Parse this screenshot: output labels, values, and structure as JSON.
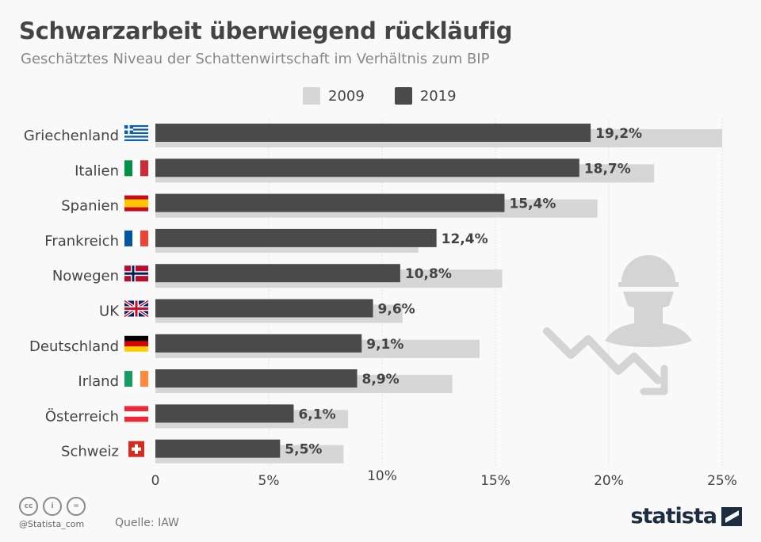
{
  "title": "Schwarzarbeit überwiegend rückläufig",
  "subtitle": "Geschätztes Niveau der Schattenwirtschaft im Verhältnis zum BIP",
  "footer": {
    "handle": "@Statista_com",
    "source": "Quelle: IAW",
    "logo": "statista",
    "cc_icons": [
      "cc",
      "by",
      "nd"
    ]
  },
  "colors": {
    "y2009": "#d6d6d6",
    "y2019": "#4a4a4a",
    "grid": "#e4e4e4"
  },
  "chart_data": {
    "type": "bar",
    "orientation": "horizontal",
    "title": "Schwarzarbeit überwiegend rückläufig",
    "categories": [
      "Griechenland",
      "Italien",
      "Spanien",
      "Frankreich",
      "Nowegen",
      "UK",
      "Deutschland",
      "Irland",
      "Österreich",
      "Schweiz"
    ],
    "series": [
      {
        "name": "2009",
        "values": [
          25.0,
          22.0,
          19.5,
          11.6,
          15.3,
          10.9,
          14.3,
          13.1,
          8.5,
          8.3
        ]
      },
      {
        "name": "2019",
        "values": [
          19.2,
          18.7,
          15.4,
          12.4,
          10.8,
          9.6,
          9.1,
          8.9,
          6.1,
          5.5
        ],
        "labels": [
          "19,2%",
          "18,7%",
          "15,4%",
          "12,4%",
          "10,8%",
          "9,6%",
          "9,1%",
          "8,9%",
          "6,1%",
          "5,5%"
        ]
      }
    ],
    "xlim": [
      0,
      25
    ],
    "xticks": [
      0,
      5,
      10,
      15,
      20,
      25
    ],
    "xtick_labels": [
      "0",
      "5%",
      "10%",
      "15%",
      "20%",
      "25%"
    ],
    "legend": "top-center",
    "grid": true
  }
}
